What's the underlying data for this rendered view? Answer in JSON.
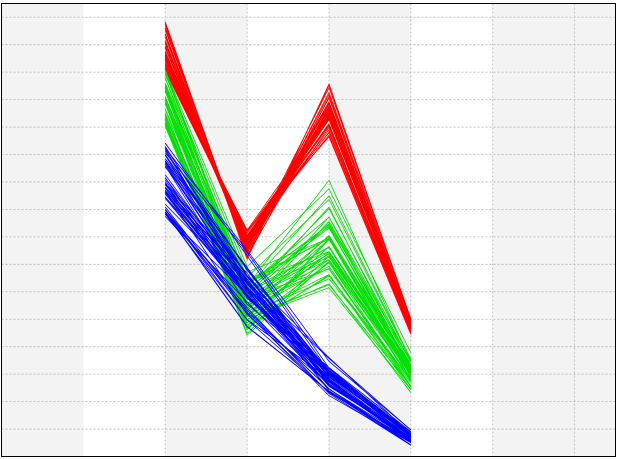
{
  "chart_data": {
    "type": "line",
    "x": [
      1,
      2,
      3,
      4,
      5,
      6,
      7
    ],
    "ylim": [
      0,
      16.5
    ],
    "grid": true,
    "band_color": "#f3f3f3",
    "grid_color": "#b3b3b3",
    "frame_color": "#000000",
    "series": [
      {
        "color": "#ff0000",
        "count": 50,
        "seed": 11,
        "p2": [
          14.0,
          15.9
        ],
        "p3": [
          8.3,
          7.0
        ],
        "p4": [
          11.5,
          13.7
        ],
        "p5": [
          4.4,
          5.1
        ],
        "corr": [
          0.7,
          0.6,
          0.8
        ]
      },
      {
        "color": "#00e000",
        "count": 50,
        "seed": 23,
        "p2": [
          12.0,
          14.1
        ],
        "p3": [
          4.1,
          7.0
        ],
        "p4": [
          5.9,
          10.2
        ],
        "p5": [
          2.2,
          4.0
        ],
        "corr": [
          0.6,
          0.5,
          0.7
        ]
      },
      {
        "color": "#0000ff",
        "count": 50,
        "seed": 37,
        "p2": [
          8.7,
          11.7
        ],
        "p3": [
          4.5,
          7.9
        ],
        "p4": [
          2.1,
          3.8
        ],
        "p5": [
          0.3,
          1.1
        ],
        "corr": [
          0.6,
          0.6,
          0.7
        ]
      }
    ]
  }
}
